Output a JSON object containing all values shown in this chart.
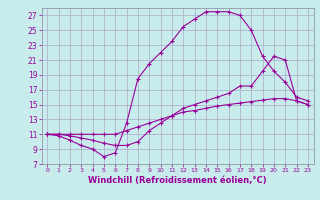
{
  "title": "",
  "xlabel": "Windchill (Refroidissement éolien,°C)",
  "bg_color": "#c8ecec",
  "grid_color": "#aaaacc",
  "line_color": "#990099",
  "xlim": [
    -0.5,
    23.5
  ],
  "ylim": [
    7,
    28
  ],
  "yticks": [
    7,
    9,
    11,
    13,
    15,
    17,
    19,
    21,
    23,
    25,
    27
  ],
  "xticks": [
    0,
    1,
    2,
    3,
    4,
    5,
    6,
    7,
    8,
    9,
    10,
    11,
    12,
    13,
    14,
    15,
    16,
    17,
    18,
    19,
    20,
    21,
    22,
    23
  ],
  "line1_x": [
    0,
    1,
    2,
    3,
    4,
    5,
    6,
    7,
    8,
    9,
    10,
    11,
    12,
    13,
    14,
    15,
    16,
    17,
    18,
    19,
    20,
    21,
    22,
    23
  ],
  "line1_y": [
    11,
    10.8,
    10.2,
    9.5,
    9.0,
    8.0,
    8.5,
    12.5,
    18.5,
    20.5,
    22.0,
    23.5,
    25.5,
    26.5,
    27.5,
    27.5,
    27.5,
    27.0,
    25.0,
    21.5,
    19.5,
    18.0,
    16.0,
    15.5
  ],
  "line2_x": [
    0,
    1,
    2,
    3,
    4,
    5,
    6,
    7,
    8,
    9,
    10,
    11,
    12,
    13,
    14,
    15,
    16,
    17,
    18,
    19,
    20,
    21,
    22,
    23
  ],
  "line2_y": [
    11,
    11,
    10.8,
    10.5,
    10.2,
    9.8,
    9.5,
    9.5,
    10.0,
    11.5,
    12.5,
    13.5,
    14.5,
    15.0,
    15.5,
    16.0,
    16.5,
    17.5,
    17.5,
    19.5,
    21.5,
    21.0,
    15.5,
    15.0
  ],
  "line3_x": [
    0,
    1,
    2,
    3,
    4,
    5,
    6,
    7,
    8,
    9,
    10,
    11,
    12,
    13,
    14,
    15,
    16,
    17,
    18,
    19,
    20,
    21,
    22,
    23
  ],
  "line3_y": [
    11,
    11,
    11,
    11,
    11,
    11,
    11,
    11.5,
    12.0,
    12.5,
    13.0,
    13.5,
    14.0,
    14.2,
    14.5,
    14.8,
    15.0,
    15.2,
    15.4,
    15.6,
    15.8,
    15.8,
    15.5,
    15.0
  ],
  "xlabel_fontsize": 6,
  "tick_fontsize": 5.5,
  "marker_size": 2.5,
  "linewidth": 0.8
}
